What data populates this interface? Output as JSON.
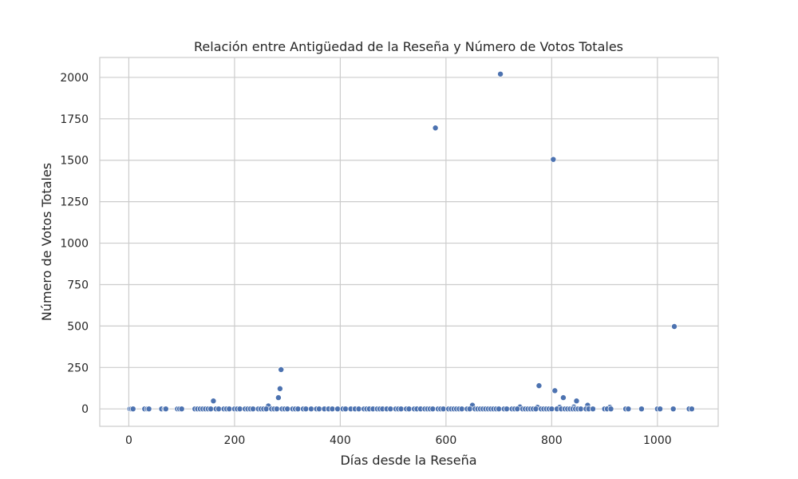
{
  "chart_data": {
    "type": "scatter",
    "title": "Relación entre Antigüedad de la Reseña y Número de Votos Totales",
    "xlabel": "Días desde la Reseña",
    "ylabel": "Número de Votos Totales",
    "xlim": [
      -55,
      1115
    ],
    "ylim": [
      -105,
      2120
    ],
    "xticks": [
      0,
      200,
      400,
      600,
      800,
      1000
    ],
    "yticks": [
      0,
      250,
      500,
      750,
      1000,
      1250,
      1500,
      1750,
      2000
    ],
    "grid": true,
    "marker_color": "#4c72b0",
    "series": [
      {
        "x": [
          703,
          580,
          803,
          1032,
          288,
          286,
          283,
          160,
          776,
          806,
          822,
          847,
          868,
          650,
          264,
          740,
          773,
          815,
          842,
          910,
          2,
          5,
          8,
          30,
          35,
          38,
          62,
          68,
          70,
          92,
          96,
          100,
          125,
          130,
          135,
          140,
          145,
          150,
          155,
          165,
          170,
          180,
          185,
          190,
          200,
          205,
          210,
          220,
          225,
          230,
          235,
          245,
          250,
          255,
          260,
          270,
          275,
          280,
          290,
          295,
          300,
          310,
          315,
          320,
          330,
          335,
          345,
          355,
          360,
          370,
          378,
          385,
          395,
          405,
          410,
          420,
          428,
          435,
          445,
          450,
          455,
          462,
          470,
          475,
          480,
          488,
          495,
          505,
          510,
          515,
          525,
          530,
          540,
          545,
          552,
          560,
          565,
          570,
          575,
          585,
          590,
          595,
          605,
          610,
          615,
          620,
          625,
          630,
          640,
          645,
          655,
          660,
          665,
          670,
          675,
          680,
          685,
          690,
          695,
          700,
          710,
          715,
          725,
          730,
          735,
          745,
          750,
          755,
          760,
          765,
          770,
          780,
          785,
          790,
          795,
          800,
          810,
          818,
          825,
          830,
          835,
          840,
          845,
          850,
          855,
          865,
          870,
          878,
          900,
          905,
          912,
          940,
          945,
          970,
          1000,
          1005,
          1030,
          1060,
          1065
        ],
        "y": [
          2020,
          1695,
          1505,
          497,
          237,
          122,
          68,
          48,
          140,
          110,
          68,
          48,
          22,
          22,
          18,
          12,
          10,
          10,
          12,
          10,
          0,
          0,
          0,
          0,
          0,
          0,
          0,
          0,
          0,
          0,
          0,
          0,
          0,
          0,
          0,
          0,
          0,
          0,
          0,
          0,
          0,
          0,
          0,
          0,
          0,
          0,
          0,
          0,
          0,
          0,
          0,
          0,
          0,
          0,
          0,
          0,
          0,
          0,
          0,
          0,
          0,
          0,
          0,
          0,
          0,
          0,
          0,
          0,
          0,
          0,
          0,
          0,
          0,
          0,
          0,
          0,
          0,
          0,
          0,
          0,
          0,
          0,
          0,
          0,
          0,
          0,
          0,
          0,
          0,
          0,
          0,
          0,
          0,
          0,
          0,
          0,
          0,
          0,
          0,
          0,
          0,
          0,
          0,
          0,
          0,
          0,
          0,
          0,
          0,
          0,
          0,
          0,
          0,
          0,
          0,
          0,
          0,
          0,
          0,
          0,
          0,
          0,
          0,
          0,
          0,
          0,
          0,
          0,
          0,
          0,
          0,
          0,
          0,
          0,
          0,
          0,
          0,
          0,
          0,
          0,
          0,
          0,
          0,
          0,
          0,
          0,
          0,
          0,
          0,
          0,
          0,
          0,
          0,
          0,
          0,
          0,
          0,
          0,
          0
        ]
      }
    ]
  }
}
